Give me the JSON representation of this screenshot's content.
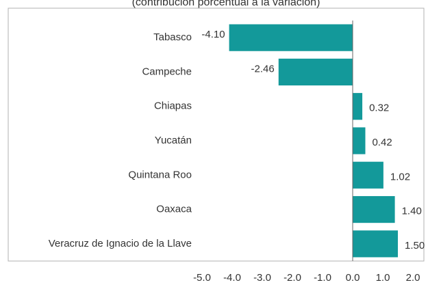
{
  "chart_data": {
    "type": "barh",
    "title": "(contribución porcentual a la variación)",
    "categories": [
      "Tabasco",
      "Campeche",
      "Chiapas",
      "Yucatán",
      "Quintana Roo",
      "Oaxaca",
      "Veracruz de Ignacio de la Llave"
    ],
    "values": [
      -4.1,
      -2.46,
      0.32,
      0.42,
      1.02,
      1.4,
      1.5
    ],
    "value_labels": [
      "-4.10",
      "-2.46",
      "0.32",
      "0.42",
      "1.02",
      "1.40",
      "1.50"
    ],
    "color": "#13999a",
    "xlim": [
      -5,
      2
    ],
    "xticks": [
      {
        "value": -5,
        "label": "-5.0"
      },
      {
        "value": -4,
        "label": "-4.0"
      },
      {
        "value": -3,
        "label": "-3.0"
      },
      {
        "value": -2,
        "label": "-2.0"
      },
      {
        "value": -1,
        "label": "-1.0"
      },
      {
        "value": 0,
        "label": "0.0"
      },
      {
        "value": 1,
        "label": "1.0"
      },
      {
        "value": 2,
        "label": "2.0"
      }
    ],
    "grid": false
  }
}
